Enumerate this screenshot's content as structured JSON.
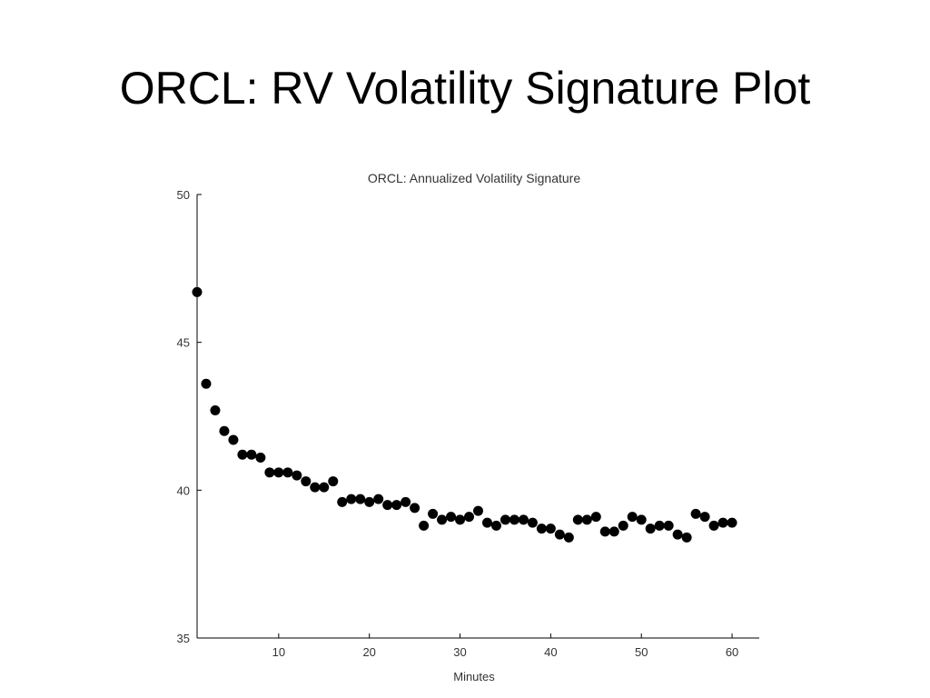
{
  "slide": {
    "title": "ORCL: RV Volatility Signature Plot"
  },
  "chart_data": {
    "type": "scatter",
    "title": "ORCL: Annualized Volatility Signature",
    "xlabel": "Minutes",
    "ylabel": "",
    "xlim": [
      1,
      63
    ],
    "ylim": [
      35,
      50
    ],
    "xticks": [
      10,
      20,
      30,
      40,
      50,
      60
    ],
    "yticks": [
      35,
      40,
      45,
      50
    ],
    "grid": false,
    "marker_color": "#000000",
    "series": [
      {
        "x": [
          1,
          2,
          3,
          4,
          5,
          6,
          7,
          8,
          9,
          10,
          11,
          12,
          13,
          14,
          15,
          16,
          17,
          18,
          19,
          20,
          21,
          22,
          23,
          24,
          25,
          26,
          27,
          28,
          29,
          30,
          31,
          32,
          33,
          34,
          35,
          36,
          37,
          38,
          39,
          40,
          41,
          42,
          43,
          44,
          45,
          46,
          47,
          48,
          49,
          50,
          51,
          52,
          53,
          54,
          55,
          56,
          57,
          58,
          59,
          60
        ],
        "values": [
          46.7,
          43.6,
          42.7,
          42.0,
          41.7,
          41.2,
          41.2,
          41.1,
          40.6,
          40.6,
          40.6,
          40.5,
          40.3,
          40.1,
          40.1,
          40.3,
          39.6,
          39.7,
          39.7,
          39.6,
          39.7,
          39.5,
          39.5,
          39.6,
          39.4,
          38.8,
          39.2,
          39.0,
          39.1,
          39.0,
          39.1,
          39.3,
          38.9,
          38.8,
          39.0,
          39.0,
          39.0,
          38.9,
          38.7,
          38.7,
          38.5,
          38.4,
          39.0,
          39.0,
          39.1,
          38.6,
          38.6,
          38.8,
          39.1,
          39.0,
          38.7,
          38.8,
          38.8,
          38.5,
          38.4,
          39.2,
          39.1,
          38.8,
          38.9,
          38.9
        ]
      }
    ]
  }
}
